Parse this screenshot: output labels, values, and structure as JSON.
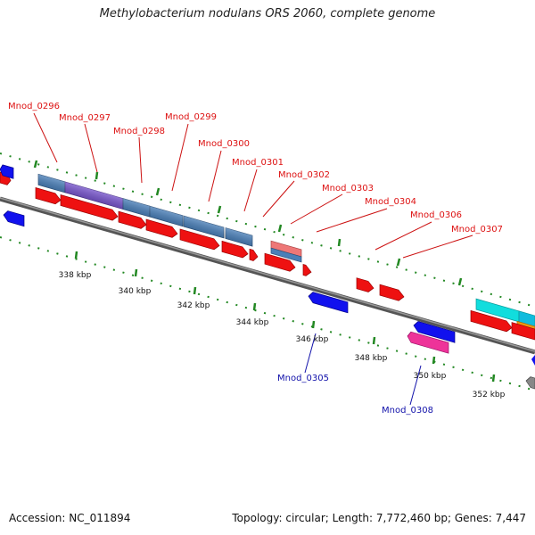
{
  "title": "Methylobacterium nodulans ORS 2060, complete genome",
  "accession_text": "Accession: NC_011894",
  "topology_text": "Topology: circular; Length: 7,772,460 bp; Genes: 7,447",
  "colors": {
    "red": "#ee1111",
    "steelblue": "#4a7fb8",
    "purple": "#7755cc",
    "blue": "#1111ee",
    "pink": "#ee3399",
    "cyan": "#11dddd",
    "orange": "#ee9911",
    "salmon": "#ee7777",
    "gray": "#888888",
    "green": "#228822",
    "label_red": "#dd1111",
    "label_blue": "#1111aa"
  },
  "ticks": [
    {
      "label": "338 kbp"
    },
    {
      "label": "340 kbp"
    },
    {
      "label": "342 kbp"
    },
    {
      "label": "344 kbp"
    },
    {
      "label": "346 kbp"
    },
    {
      "label": "348 kbp"
    },
    {
      "label": "350 kbp"
    },
    {
      "label": "352 kbp"
    }
  ],
  "gene_labels_top": [
    {
      "name": "Mnod_0296"
    },
    {
      "name": "Mnod_0297"
    },
    {
      "name": "Mnod_0298"
    },
    {
      "name": "Mnod_0299"
    },
    {
      "name": "Mnod_0300"
    },
    {
      "name": "Mnod_0301"
    },
    {
      "name": "Mnod_0302"
    },
    {
      "name": "Mnod_0303"
    },
    {
      "name": "Mnod_0304"
    },
    {
      "name": "Mnod_0306"
    },
    {
      "name": "Mnod_0307"
    }
  ],
  "gene_labels_bottom": [
    {
      "name": "Mnod_0305"
    },
    {
      "name": "Mnod_0308"
    }
  ]
}
